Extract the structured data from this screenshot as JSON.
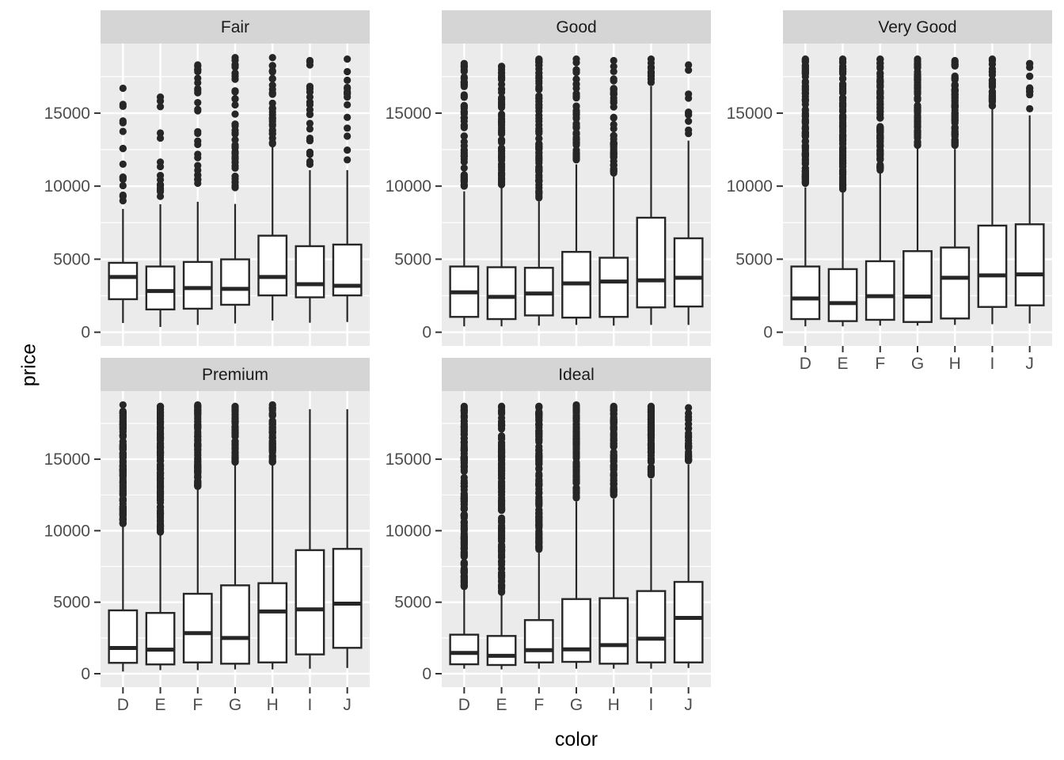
{
  "chart_data": {
    "type": "boxplot",
    "title": "",
    "facet_variable": "cut",
    "xlabel": "color",
    "ylabel": "price",
    "x_categories": [
      "D",
      "E",
      "F",
      "G",
      "H",
      "I",
      "J"
    ],
    "y_ticks": [
      0,
      5000,
      10000,
      15000
    ],
    "y_minor_ticks": [
      2500,
      7500,
      12500,
      17500
    ],
    "y_domain": [
      -941,
      19764
    ],
    "legend": "none",
    "grid": "on",
    "facets": [
      {
        "name": "Fair",
        "boxes": [
          {
            "x": "D",
            "low": 630,
            "q1": 2260,
            "median": 3780,
            "q3": 4750,
            "high": 8440,
            "outliers": {
              "min": 9000,
              "max": 16700,
              "n": 14
            }
          },
          {
            "x": "E",
            "low": 360,
            "q1": 1560,
            "median": 2820,
            "q3": 4500,
            "high": 8760,
            "outliers": {
              "min": 9300,
              "max": 16100,
              "n": 13
            }
          },
          {
            "x": "F",
            "low": 500,
            "q1": 1610,
            "median": 3020,
            "q3": 4810,
            "high": 8930,
            "outliers": {
              "min": 10200,
              "max": 18300,
              "n": 26
            }
          },
          {
            "x": "G",
            "low": 600,
            "q1": 1880,
            "median": 2970,
            "q3": 4990,
            "high": 8780,
            "outliers": {
              "min": 9900,
              "max": 18800,
              "n": 42
            }
          },
          {
            "x": "H",
            "low": 800,
            "q1": 2520,
            "median": 3780,
            "q3": 6610,
            "high": 12720,
            "outliers": {
              "min": 12900,
              "max": 18800,
              "n": 30
            }
          },
          {
            "x": "I",
            "low": 650,
            "q1": 2390,
            "median": 3290,
            "q3": 5890,
            "high": 11100,
            "outliers": {
              "min": 11500,
              "max": 18600,
              "n": 20
            }
          },
          {
            "x": "J",
            "low": 700,
            "q1": 2520,
            "median": 3180,
            "q3": 6000,
            "high": 11100,
            "outliers": {
              "min": 11800,
              "max": 18700,
              "n": 14
            }
          }
        ]
      },
      {
        "name": "Good",
        "boxes": [
          {
            "x": "D",
            "low": 400,
            "q1": 1050,
            "median": 2730,
            "q3": 4500,
            "high": 9650,
            "outliers": {
              "min": 10000,
              "max": 18400,
              "n": 55
            }
          },
          {
            "x": "E",
            "low": 400,
            "q1": 900,
            "median": 2420,
            "q3": 4450,
            "high": 9870,
            "outliers": {
              "min": 10100,
              "max": 18200,
              "n": 65
            }
          },
          {
            "x": "F",
            "low": 450,
            "q1": 1150,
            "median": 2650,
            "q3": 4410,
            "high": 8960,
            "outliers": {
              "min": 9200,
              "max": 18700,
              "n": 75
            }
          },
          {
            "x": "G",
            "low": 500,
            "q1": 1000,
            "median": 3340,
            "q3": 5500,
            "high": 11490,
            "outliers": {
              "min": 11800,
              "max": 18700,
              "n": 55
            }
          },
          {
            "x": "H",
            "low": 450,
            "q1": 1050,
            "median": 3470,
            "q3": 5100,
            "high": 10650,
            "outliers": {
              "min": 10900,
              "max": 18600,
              "n": 50
            }
          },
          {
            "x": "I",
            "low": 500,
            "q1": 1700,
            "median": 3550,
            "q3": 7840,
            "high": 16840,
            "outliers": {
              "min": 17100,
              "max": 18700,
              "n": 10
            }
          },
          {
            "x": "J",
            "low": 500,
            "q1": 1760,
            "median": 3730,
            "q3": 6430,
            "high": 13120,
            "outliers": {
              "min": 13600,
              "max": 18300,
              "n": 8
            }
          }
        ]
      },
      {
        "name": "Very Good",
        "boxes": [
          {
            "x": "D",
            "low": 400,
            "q1": 900,
            "median": 2310,
            "q3": 4500,
            "high": 9920,
            "outliers": {
              "min": 10200,
              "max": 18700,
              "n": 110
            }
          },
          {
            "x": "E",
            "low": 400,
            "q1": 760,
            "median": 1990,
            "q3": 4320,
            "high": 9620,
            "outliers": {
              "min": 9800,
              "max": 18700,
              "n": 115
            }
          },
          {
            "x": "F",
            "low": 450,
            "q1": 850,
            "median": 2470,
            "q3": 4860,
            "high": 10920,
            "outliers": {
              "min": 11100,
              "max": 18700,
              "n": 100
            }
          },
          {
            "x": "G",
            "low": 450,
            "q1": 700,
            "median": 2440,
            "q3": 5550,
            "high": 12580,
            "outliers": {
              "min": 12800,
              "max": 18700,
              "n": 85
            }
          },
          {
            "x": "H",
            "low": 500,
            "q1": 940,
            "median": 3730,
            "q3": 5800,
            "high": 12540,
            "outliers": {
              "min": 12800,
              "max": 18600,
              "n": 70
            }
          },
          {
            "x": "I",
            "low": 550,
            "q1": 1730,
            "median": 3890,
            "q3": 7300,
            "high": 15290,
            "outliers": {
              "min": 15500,
              "max": 18700,
              "n": 40
            }
          },
          {
            "x": "J",
            "low": 600,
            "q1": 1840,
            "median": 3960,
            "q3": 7390,
            "high": 14850,
            "outliers": {
              "min": 15300,
              "max": 18400,
              "n": 12
            }
          }
        ]
      },
      {
        "name": "Premium",
        "boxes": [
          {
            "x": "D",
            "low": 150,
            "q1": 760,
            "median": 1800,
            "q3": 4430,
            "high": 10300,
            "outliers": {
              "min": 10500,
              "max": 18800,
              "n": 130
            }
          },
          {
            "x": "E",
            "low": 250,
            "q1": 650,
            "median": 1680,
            "q3": 4250,
            "high": 9690,
            "outliers": {
              "min": 9900,
              "max": 18700,
              "n": 140
            }
          },
          {
            "x": "F",
            "low": 250,
            "q1": 790,
            "median": 2840,
            "q3": 5590,
            "high": 12880,
            "outliers": {
              "min": 13100,
              "max": 18800,
              "n": 95
            }
          },
          {
            "x": "G",
            "low": 300,
            "q1": 700,
            "median": 2500,
            "q3": 6180,
            "high": 14630,
            "outliers": {
              "min": 14800,
              "max": 18700,
              "n": 65
            }
          },
          {
            "x": "H",
            "low": 300,
            "q1": 790,
            "median": 4350,
            "q3": 6330,
            "high": 14630,
            "outliers": {
              "min": 14800,
              "max": 18800,
              "n": 60
            }
          },
          {
            "x": "I",
            "low": 350,
            "q1": 1350,
            "median": 4500,
            "q3": 8640,
            "high": 18500,
            "outliers": null
          },
          {
            "x": "J",
            "low": 400,
            "q1": 1810,
            "median": 4900,
            "q3": 8730,
            "high": 18500,
            "outliers": null
          }
        ]
      },
      {
        "name": "Ideal",
        "boxes": [
          {
            "x": "D",
            "low": 350,
            "q1": 660,
            "median": 1450,
            "q3": 2730,
            "high": 5870,
            "outliers": {
              "min": 6100,
              "max": 18700,
              "n": 150
            }
          },
          {
            "x": "E",
            "low": 300,
            "q1": 610,
            "median": 1250,
            "q3": 2640,
            "high": 5500,
            "outliers": {
              "min": 5700,
              "max": 18700,
              "n": 160
            }
          },
          {
            "x": "F",
            "low": 350,
            "q1": 790,
            "median": 1650,
            "q3": 3750,
            "high": 8450,
            "outliers": {
              "min": 8700,
              "max": 18700,
              "n": 120
            }
          },
          {
            "x": "G",
            "low": 350,
            "q1": 830,
            "median": 1700,
            "q3": 5220,
            "high": 12050,
            "outliers": {
              "min": 12300,
              "max": 18800,
              "n": 90
            }
          },
          {
            "x": "H",
            "low": 350,
            "q1": 700,
            "median": 2000,
            "q3": 5280,
            "high": 12230,
            "outliers": {
              "min": 12500,
              "max": 18700,
              "n": 80
            }
          },
          {
            "x": "I",
            "low": 350,
            "q1": 790,
            "median": 2450,
            "q3": 5780,
            "high": 13620,
            "outliers": {
              "min": 13900,
              "max": 18700,
              "n": 70
            }
          },
          {
            "x": "J",
            "low": 400,
            "q1": 790,
            "median": 3900,
            "q3": 6420,
            "high": 14630,
            "outliers": {
              "min": 14900,
              "max": 18600,
              "n": 28
            }
          }
        ]
      }
    ]
  },
  "style": {
    "panel_bg": "#EBEBEB",
    "strip_bg": "#D5D5D5",
    "strip_text": "#1A1A1A",
    "grid_color": "#FFFFFF",
    "box_stroke": "#262626",
    "box_fill": "#FFFFFF",
    "outlier_fill": "#262626",
    "tick_mark": "#333333",
    "tick_label": "#4D4D4D",
    "title_color": "#000000"
  }
}
